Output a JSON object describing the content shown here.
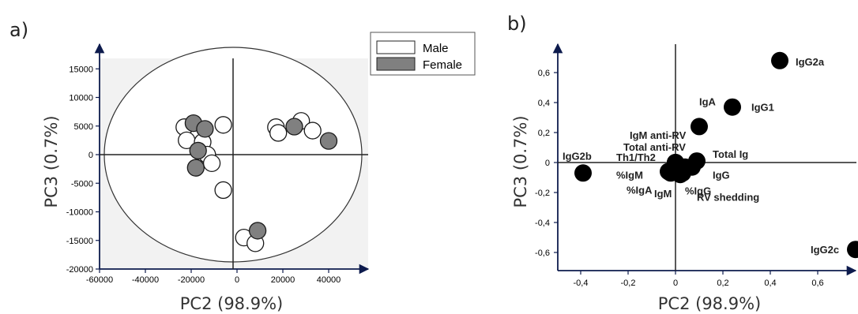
{
  "chart_data": [
    {
      "panel_label": "a)",
      "type": "scatter",
      "xlabel": "PC2 (98.9%)",
      "ylabel": "PC3 (0.7%)",
      "xlim": [
        -60000,
        60000
      ],
      "ylim": [
        -20000,
        19000
      ],
      "x_ticks": [
        -60000,
        -40000,
        -20000,
        0,
        20000,
        40000
      ],
      "y_ticks": [
        -20000,
        -15000,
        -10000,
        -5000,
        0,
        5000,
        10000,
        15000
      ],
      "legend": [
        "Male",
        "Female"
      ],
      "legend_position": "top-right",
      "colors": {
        "Male": "#ffffff",
        "Female": "#808080"
      },
      "series": [
        {
          "name": "Male",
          "points": [
            [
              -23000,
              4800
            ],
            [
              -22000,
              2500
            ],
            [
              -15000,
              2200
            ],
            [
              -13000,
              0
            ],
            [
              -11000,
              -1500
            ],
            [
              -6000,
              5200
            ],
            [
              -6000,
              -6200
            ],
            [
              17000,
              4800
            ],
            [
              18000,
              3800
            ],
            [
              28000,
              5900
            ],
            [
              33000,
              4200
            ],
            [
              3000,
              -14500
            ],
            [
              8000,
              -15500
            ]
          ]
        },
        {
          "name": "Female",
          "points": [
            [
              -19000,
              5500
            ],
            [
              -14000,
              4500
            ],
            [
              -17000,
              700
            ],
            [
              -18000,
              -2300
            ],
            [
              25000,
              4900
            ],
            [
              40000,
              2400
            ],
            [
              9000,
              -13300
            ]
          ]
        }
      ]
    },
    {
      "panel_label": "b)",
      "type": "scatter",
      "xlabel": "PC2 (98.9%)",
      "ylabel": "PC3 (0.7%)",
      "xlim": [
        -0.5,
        0.8
      ],
      "ylim": [
        -0.68,
        0.77
      ],
      "x_ticks": [
        "-0,4",
        "-0,2",
        "0",
        "0,2",
        "0,4",
        "0,6"
      ],
      "x_tick_values": [
        -0.4,
        -0.2,
        0,
        0.2,
        0.4,
        0.6
      ],
      "y_ticks": [
        "-0,6",
        "-0,4",
        "-0,2",
        "0",
        "0,2",
        "0,4",
        "0,6"
      ],
      "y_tick_values": [
        -0.6,
        -0.4,
        -0.2,
        0,
        0.2,
        0.4,
        0.6
      ],
      "points": [
        {
          "label": "IgG2a",
          "x": 0.44,
          "y": 0.68
        },
        {
          "label": "IgG1",
          "x": 0.24,
          "y": 0.37
        },
        {
          "label": "IgA",
          "x": 0.1,
          "y": 0.24
        },
        {
          "label": "IgG2b",
          "x": -0.39,
          "y": -0.07
        },
        {
          "label": "IgG2c",
          "x": 0.76,
          "y": -0.58
        },
        {
          "label": "IgM anti-RV",
          "x": 0.0,
          "y": 0.0
        },
        {
          "label": "Total anti-RV",
          "x": 0.0,
          "y": 0.0
        },
        {
          "label": "Th1/Th2",
          "x": 0.0,
          "y": 0.0
        },
        {
          "label": "%IgM",
          "x": -0.03,
          "y": -0.06
        },
        {
          "label": "%IgA",
          "x": -0.02,
          "y": -0.07
        },
        {
          "label": "IgM",
          "x": 0.02,
          "y": -0.08
        },
        {
          "label": "%IgG",
          "x": 0.03,
          "y": -0.07
        },
        {
          "label": "Total Ig",
          "x": 0.09,
          "y": 0.01
        },
        {
          "label": "IgG",
          "x": 0.07,
          "y": -0.03
        },
        {
          "label": "RV shedding",
          "x": 0.04,
          "y": -0.03
        }
      ]
    }
  ]
}
